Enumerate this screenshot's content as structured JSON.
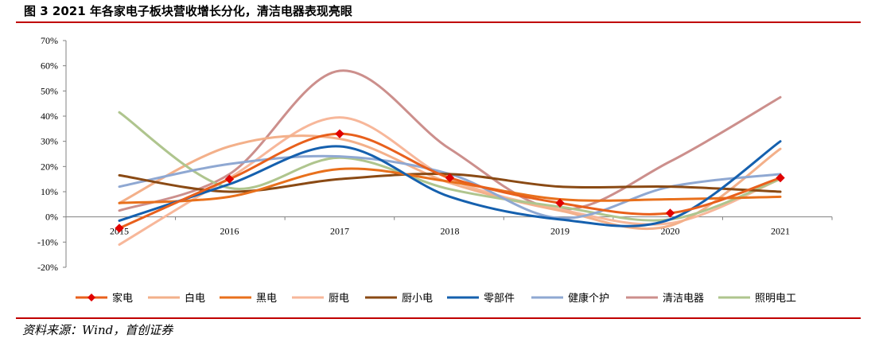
{
  "header": {
    "figure_label": "图 3",
    "title": "2021 年各家电子板块营收增长分化，清洁电器表现亮眼"
  },
  "footer": {
    "source": "资料来源：Wind，首创证券"
  },
  "chart_data": {
    "type": "line",
    "title": "2021 年各家电子板块营收增长分化，清洁电器表现亮眼",
    "xlabel": "",
    "ylabel": "",
    "categories": [
      "2015",
      "2016",
      "2017",
      "2018",
      "2019",
      "2020",
      "2021"
    ],
    "ylim": [
      -0.2,
      0.7
    ],
    "yticks": [
      "70%",
      "60%",
      "50%",
      "40%",
      "30%",
      "20%",
      "10%",
      "0%",
      "-10%",
      "-20%"
    ],
    "grid": false,
    "legend_position": "bottom",
    "series": [
      {
        "name": "家电",
        "color": "#e8601c",
        "marker": "diamond",
        "marker_color": "#e00000",
        "values": [
          -0.045,
          0.15,
          0.33,
          0.155,
          0.055,
          0.015,
          0.155
        ]
      },
      {
        "name": "白电",
        "color": "#f3b08a",
        "values": [
          0.055,
          0.28,
          0.31,
          0.135,
          0.025,
          -0.035,
          0.27
        ]
      },
      {
        "name": "黑电",
        "color": "#e8701c",
        "values": [
          0.055,
          0.08,
          0.19,
          0.14,
          0.07,
          0.07,
          0.08
        ]
      },
      {
        "name": "厨电",
        "color": "#f7b79a",
        "values": [
          -0.11,
          0.155,
          0.395,
          0.15,
          0.03,
          -0.025,
          0.15
        ]
      },
      {
        "name": "厨小电",
        "color": "#8a4a14",
        "values": [
          0.165,
          0.1,
          0.15,
          0.17,
          0.12,
          0.12,
          0.1
        ]
      },
      {
        "name": "零部件",
        "color": "#1560ae",
        "values": [
          -0.015,
          0.13,
          0.28,
          0.08,
          -0.01,
          -0.01,
          0.3
        ]
      },
      {
        "name": "健康个护",
        "color": "#8fa8d2",
        "values": [
          0.12,
          0.21,
          0.24,
          0.17,
          -0.005,
          0.12,
          0.17
        ]
      },
      {
        "name": "清洁电器",
        "color": "#cc8f8c",
        "values": [
          0.025,
          0.17,
          0.58,
          0.27,
          0.03,
          0.22,
          0.475
        ]
      },
      {
        "name": "照明电工",
        "color": "#afc58e",
        "values": [
          0.415,
          0.115,
          0.235,
          0.11,
          0.04,
          -0.01,
          0.15
        ]
      }
    ]
  }
}
